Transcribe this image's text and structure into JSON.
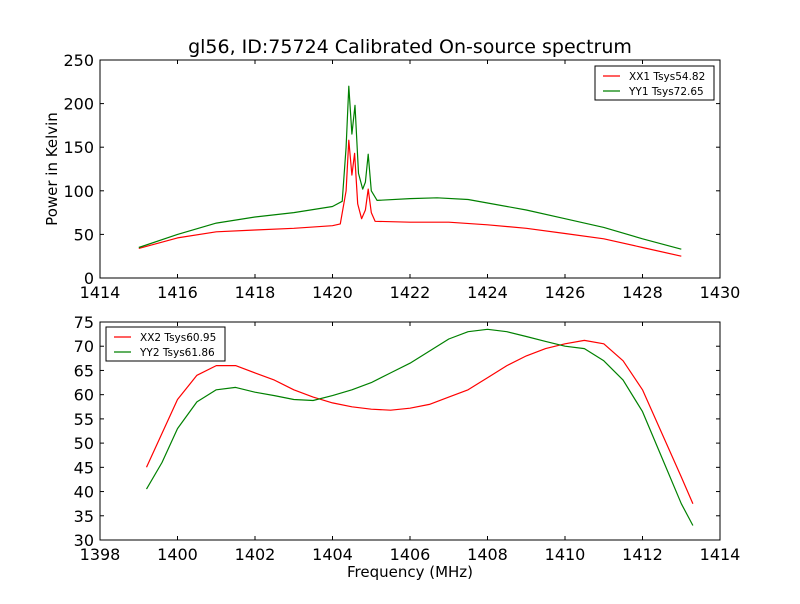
{
  "chart_data": [
    {
      "type": "line",
      "title": "gl56, ID:75724 Calibrated On-source spectrum",
      "xlabel": "",
      "ylabel": "Power in Kelvin",
      "xlim": [
        1414,
        1430
      ],
      "ylim": [
        0,
        250
      ],
      "xticks": [
        1414,
        1416,
        1418,
        1420,
        1422,
        1424,
        1426,
        1428,
        1430
      ],
      "yticks": [
        0,
        50,
        100,
        150,
        200,
        250
      ],
      "grid": false,
      "legend_position": "top-right",
      "series": [
        {
          "name": "XX1 Tsys54.82",
          "color": "#ff0000",
          "x": [
            1415,
            1416,
            1417,
            1418,
            1419,
            1420,
            1420.2,
            1420.35,
            1420.42,
            1420.5,
            1420.57,
            1420.65,
            1420.75,
            1420.85,
            1420.92,
            1421,
            1421.1,
            1422,
            1423,
            1424,
            1425,
            1426,
            1427,
            1428,
            1429
          ],
          "y": [
            34,
            46,
            53,
            55,
            57,
            60,
            62,
            100,
            158,
            118,
            143,
            85,
            68,
            78,
            102,
            75,
            65,
            64,
            64,
            61,
            57,
            51,
            45,
            35,
            25
          ]
        },
        {
          "name": "YY1 Tsys72.65",
          "color": "#008000",
          "x": [
            1415,
            1416,
            1417,
            1418,
            1419,
            1420,
            1420.25,
            1420.35,
            1420.42,
            1420.5,
            1420.58,
            1420.67,
            1420.78,
            1420.85,
            1420.92,
            1421,
            1421.15,
            1422,
            1422.7,
            1423.5,
            1424,
            1425,
            1426,
            1427,
            1428,
            1429
          ],
          "y": [
            35,
            50,
            63,
            70,
            75,
            82,
            88,
            150,
            220,
            165,
            198,
            120,
            102,
            110,
            142,
            100,
            89,
            91,
            92,
            90,
            86,
            78,
            68,
            58,
            45,
            33
          ]
        }
      ]
    },
    {
      "type": "line",
      "title": "",
      "xlabel": "Frequency (MHz)",
      "ylabel": "",
      "xlim": [
        1398,
        1414
      ],
      "ylim": [
        30,
        75
      ],
      "xticks": [
        1398,
        1400,
        1402,
        1404,
        1406,
        1408,
        1410,
        1412,
        1414
      ],
      "yticks": [
        30,
        35,
        40,
        45,
        50,
        55,
        60,
        65,
        70,
        75
      ],
      "grid": false,
      "legend_position": "top-left",
      "series": [
        {
          "name": "XX2 Tsys60.95",
          "color": "#ff0000",
          "x": [
            1399.2,
            1399.6,
            1400,
            1400.5,
            1401,
            1401.5,
            1402,
            1402.5,
            1403,
            1403.5,
            1404,
            1404.5,
            1405,
            1405.5,
            1406,
            1406.5,
            1407,
            1407.5,
            1408,
            1408.5,
            1409,
            1409.5,
            1410,
            1410.5,
            1411,
            1411.5,
            1412,
            1412.5,
            1413,
            1413.3
          ],
          "y": [
            45,
            52,
            59,
            64,
            66,
            66,
            64.5,
            63,
            61,
            59.5,
            58.3,
            57.5,
            57,
            56.8,
            57.2,
            58,
            59.5,
            61,
            63.5,
            66,
            68,
            69.5,
            70.5,
            71.2,
            70.5,
            67,
            61,
            52,
            43,
            37.5
          ]
        },
        {
          "name": "YY2 Tsys61.86",
          "color": "#008000",
          "x": [
            1399.2,
            1399.6,
            1400,
            1400.5,
            1401,
            1401.5,
            1402,
            1402.5,
            1403,
            1403.5,
            1404,
            1404.5,
            1405,
            1405.5,
            1406,
            1406.5,
            1407,
            1407.5,
            1408,
            1408.5,
            1409,
            1409.5,
            1410,
            1410.5,
            1411,
            1411.5,
            1412,
            1412.5,
            1413,
            1413.3
          ],
          "y": [
            40.5,
            46,
            53,
            58.5,
            61,
            61.5,
            60.5,
            59.8,
            59,
            58.8,
            59.8,
            61,
            62.5,
            64.5,
            66.5,
            69,
            71.5,
            73,
            73.5,
            73,
            72,
            71,
            70,
            69.5,
            67,
            63,
            56.5,
            47,
            37.5,
            33
          ]
        }
      ]
    }
  ]
}
